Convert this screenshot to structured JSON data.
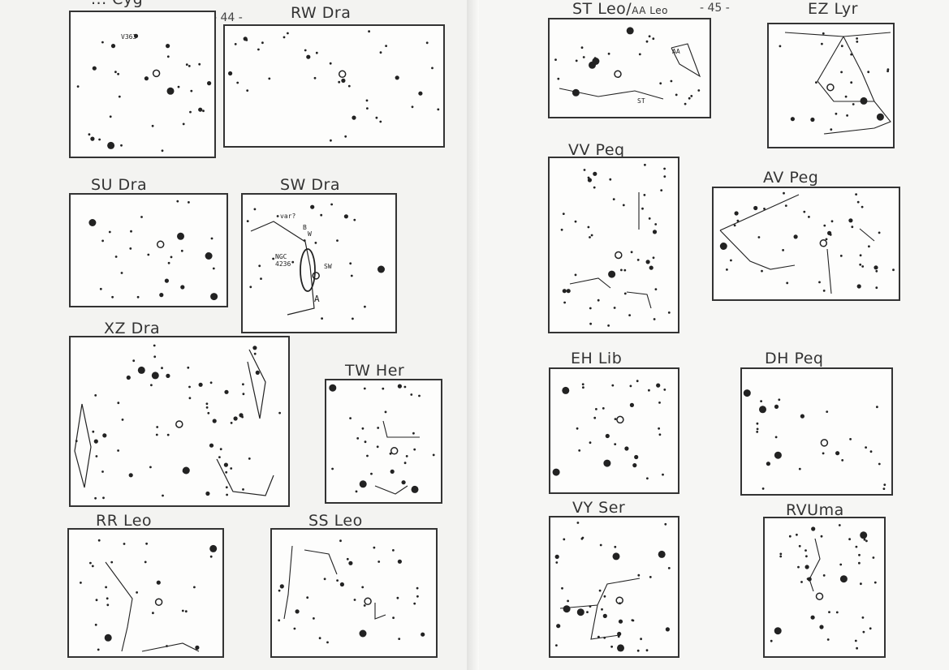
{
  "page_numbers": {
    "left": "- 44 -",
    "right": "- 45 -"
  },
  "charts_left": [
    {
      "name": "... Cyg",
      "annotation": "V363"
    },
    {
      "name": "RW Dra"
    },
    {
      "name": "SU Dra"
    },
    {
      "name": "SW Dra",
      "annotations": [
        "var?",
        "B",
        "W",
        "NGC 4236",
        "SW",
        "A"
      ]
    },
    {
      "name": "XZ Dra"
    },
    {
      "name": "TW Her"
    },
    {
      "name": "RR Leo"
    },
    {
      "name": "SS Leo"
    }
  ],
  "charts_right": [
    {
      "name": "ST Leo/",
      "suffix": "AA Leo",
      "annotations": [
        "AA",
        "ST"
      ]
    },
    {
      "name": "EZ Lyr"
    },
    {
      "name": "VV Peq"
    },
    {
      "name": "AV Peg"
    },
    {
      "name": "EH Lib"
    },
    {
      "name": "DH Peq"
    },
    {
      "name": "VY Ser"
    },
    {
      "name": "RVUma"
    }
  ]
}
